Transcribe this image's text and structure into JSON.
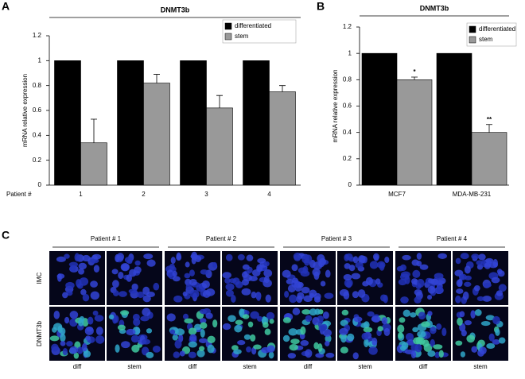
{
  "chart_data": [
    {
      "type": "bar",
      "panel_label": "A",
      "title": "DNMT3b",
      "y_label": "mRNA relative expression",
      "x_label": "Patient #",
      "categories": [
        "1",
        "2",
        "3",
        "4"
      ],
      "series": [
        {
          "name": "differentiated",
          "color": "#000000",
          "values": [
            1,
            1,
            1,
            1
          ]
        },
        {
          "name": "stem",
          "color": "#999999",
          "values": [
            0.34,
            0.82,
            0.62,
            0.75
          ],
          "errors": [
            0.19,
            0.07,
            0.1,
            0.05
          ]
        }
      ],
      "ylim": [
        0,
        1.2
      ],
      "yticks": [
        0,
        0.2,
        0.4,
        0.6,
        0.8,
        1,
        1.2
      ],
      "legend": "top-right",
      "grid": false
    },
    {
      "type": "bar",
      "panel_label": "B",
      "title": "DNMT3b",
      "y_label": "mRNA relative expression",
      "categories": [
        "MCF7",
        "MDA-MB-231"
      ],
      "series": [
        {
          "name": "differentiated",
          "color": "#000000",
          "values": [
            1,
            1
          ]
        },
        {
          "name": "stem",
          "color": "#999999",
          "values": [
            0.8,
            0.4
          ],
          "errors": [
            0.02,
            0.06
          ]
        }
      ],
      "annotations": [
        "*",
        "**"
      ],
      "ylim": [
        0,
        1.2
      ],
      "yticks": [
        0,
        0.2,
        0.4,
        0.6,
        0.8,
        1,
        1.2
      ],
      "legend": "top-right",
      "grid": false
    }
  ],
  "panel_c": {
    "panel_label": "C",
    "patients": [
      "Patient # 1",
      "Patient # 2",
      "Patient # 3",
      "Patient # 4"
    ],
    "rows": [
      "IMC",
      "DNMT3b"
    ],
    "columns": [
      "diff",
      "stem"
    ]
  }
}
